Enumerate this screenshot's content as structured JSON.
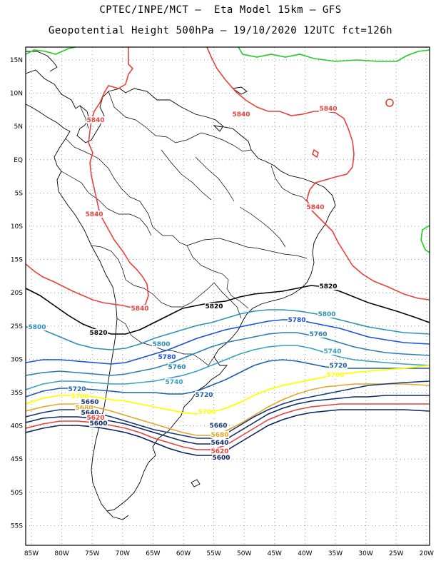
{
  "header": {
    "line1": "CPTEC/INPE/MCT –  Eta Model 15km – GFS",
    "line2": "Geopotential Height 500hPa – 19/10/2020 12UTC fct=126h"
  },
  "map": {
    "lat_labels": [
      "15N",
      "10N",
      "5N",
      "EQ",
      "5S",
      "10S",
      "15S",
      "20S",
      "25S",
      "30S",
      "35S",
      "40S",
      "45S",
      "50S",
      "55S"
    ],
    "lon_labels": [
      "85W",
      "80W",
      "75W",
      "70W",
      "65W",
      "60W",
      "55W",
      "50W",
      "45W",
      "40W",
      "35W",
      "30W",
      "25W",
      "20W"
    ],
    "colors": {
      "5840": "#e8413c",
      "5820": "#000000",
      "5800": "#2f8fb5",
      "5780": "#1a4fd8",
      "5760": "#2a7fb0",
      "5740": "#3b9fc0",
      "5720": "#1e5fa8",
      "5700": "#ffff00",
      "5680": "#e3a52a",
      "5660": "#1a3a78",
      "5640": "#0e2a66",
      "5620": "#e8413c",
      "5600": "#0a2260",
      "green": "#22cc22"
    },
    "contour_labels": [
      {
        "id": "l5840a",
        "text": "5840"
      },
      {
        "id": "l5840b",
        "text": "5840"
      },
      {
        "id": "l5840c",
        "text": "5840"
      },
      {
        "id": "l5840d",
        "text": "5840"
      },
      {
        "id": "l5840e",
        "text": "5840"
      },
      {
        "id": "l5840f",
        "text": "5840"
      },
      {
        "id": "l5820a",
        "text": "5820"
      },
      {
        "id": "l5820b",
        "text": "5820"
      },
      {
        "id": "l5820c",
        "text": "5820"
      },
      {
        "id": "l5800a",
        "text": "5800"
      },
      {
        "id": "l5800b",
        "text": "5800"
      },
      {
        "id": "l5800c",
        "text": "5800"
      },
      {
        "id": "l5780a",
        "text": "5780"
      },
      {
        "id": "l5780b",
        "text": "5780"
      },
      {
        "id": "l5760a",
        "text": "5760"
      },
      {
        "id": "l5760b",
        "text": "5760"
      },
      {
        "id": "l5740a",
        "text": "5740"
      },
      {
        "id": "l5740b",
        "text": "5740"
      },
      {
        "id": "l5720a",
        "text": "5720"
      },
      {
        "id": "l5720b",
        "text": "5720"
      },
      {
        "id": "l5720c",
        "text": "5720"
      },
      {
        "id": "l5700a",
        "text": "5700"
      },
      {
        "id": "l5700b",
        "text": "5700"
      },
      {
        "id": "l5700c",
        "text": "5700"
      },
      {
        "id": "l5680a",
        "text": "5680"
      },
      {
        "id": "l5680b",
        "text": "5680"
      },
      {
        "id": "l5660a",
        "text": "5660"
      },
      {
        "id": "l5660b",
        "text": "5660"
      },
      {
        "id": "l5640a",
        "text": "5640"
      },
      {
        "id": "l5640b",
        "text": "5640"
      },
      {
        "id": "l5620a",
        "text": "5620"
      },
      {
        "id": "l5620b",
        "text": "5620"
      },
      {
        "id": "l5600a",
        "text": "5600"
      },
      {
        "id": "l5600b",
        "text": "5600"
      }
    ]
  }
}
